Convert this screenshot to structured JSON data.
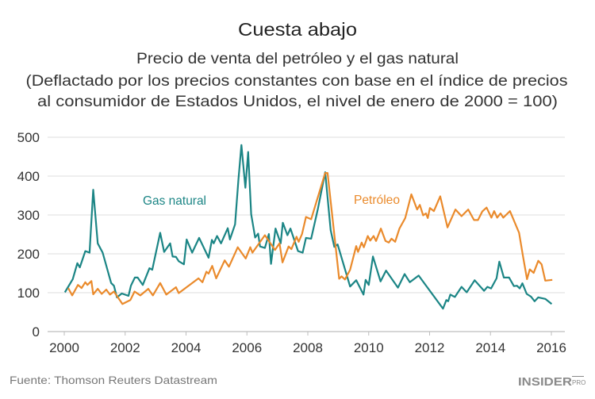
{
  "chart_data": {
    "type": "line",
    "title": "Cuesta abajo",
    "subtitle_lines": [
      "Precio de venta del petróleo y el gas natural",
      "(Deflactado por los precios constantes con base en el índice de precios",
      "al consumidor de Estados Unidos, el nivel de enero de 2000 = 100)"
    ],
    "xlabel": "",
    "ylabel": "",
    "xlim": [
      2000,
      2016
    ],
    "ylim": [
      0,
      500
    ],
    "x_ticks": [
      "2000",
      "2002",
      "2004",
      "2006",
      "2008",
      "2010",
      "2012",
      "2014",
      "2016"
    ],
    "y_ticks": [
      "0",
      "100",
      "200",
      "300",
      "400",
      "500"
    ],
    "grid": "horizontal",
    "series": [
      {
        "name": "Gas natural",
        "color": "#1b8585",
        "x": [
          2000.02,
          2000.28,
          2000.43,
          2000.51,
          2000.69,
          2000.83,
          2000.95,
          2001.1,
          2001.26,
          2001.54,
          2001.63,
          2001.73,
          2001.89,
          2002.11,
          2002.19,
          2002.32,
          2002.41,
          2002.58,
          2002.8,
          2002.89,
          2003.15,
          2003.28,
          2003.48,
          2003.56,
          2003.67,
          2003.76,
          2003.93,
          2004.02,
          2004.2,
          2004.43,
          2004.74,
          2004.85,
          2004.91,
          2005.02,
          2005.15,
          2005.37,
          2005.44,
          2005.61,
          2005.72,
          2005.82,
          2005.95,
          2006.04,
          2006.14,
          2006.27,
          2006.37,
          2006.43,
          2006.59,
          2006.72,
          2006.79,
          2006.94,
          2007.11,
          2007.18,
          2007.33,
          2007.43,
          2007.68,
          2007.83,
          2007.94,
          2008.11,
          2008.33,
          2008.57,
          2008.75,
          2008.87,
          2008.98,
          2009.39,
          2009.59,
          2009.83,
          2009.9,
          2010.0,
          2010.14,
          2010.39,
          2010.57,
          2010.96,
          2011.18,
          2011.35,
          2011.64,
          2012.44,
          2012.55,
          2012.61,
          2012.68,
          2012.83,
          2013.05,
          2013.22,
          2013.48,
          2013.79,
          2013.9,
          2014.02,
          2014.2,
          2014.29,
          2014.44,
          2014.61,
          2014.77,
          2014.87,
          2014.96,
          2015.05,
          2015.19,
          2015.33,
          2015.45,
          2015.57,
          2015.8,
          2016.01
        ],
        "values": [
          101,
          135,
          176,
          165,
          207,
          203,
          365,
          227,
          203,
          125,
          118,
          88,
          98,
          92,
          118,
          139,
          139,
          120,
          163,
          159,
          254,
          205,
          227,
          193,
          192,
          181,
          173,
          237,
          203,
          241,
          190,
          236,
          227,
          246,
          227,
          266,
          237,
          276,
          390,
          480,
          370,
          462,
          302,
          242,
          252,
          219,
          215,
          251,
          174,
          265,
          227,
          280,
          248,
          265,
          207,
          203,
          241,
          239,
          316,
          410,
          261,
          218,
          224,
          116,
          132,
          95,
          133,
          120,
          193,
          129,
          157,
          113,
          148,
          127,
          144,
          59,
          81,
          78,
          95,
          89,
          115,
          101,
          132,
          105,
          115,
          111,
          137,
          180,
          139,
          139,
          117,
          118,
          111,
          124,
          97,
          90,
          78,
          88,
          84,
          71
        ]
      },
      {
        "name": "Petróleo",
        "color": "#ea8a2b",
        "x": [
          2000.13,
          2000.26,
          2000.45,
          2000.57,
          2000.69,
          2000.76,
          2000.89,
          2000.95,
          2001.1,
          2001.23,
          2001.38,
          2001.5,
          2001.63,
          2001.91,
          2002.17,
          2002.31,
          2002.5,
          2002.76,
          2002.91,
          2003.15,
          2003.35,
          2003.67,
          2003.76,
          2004.41,
          2004.54,
          2004.67,
          2004.74,
          2004.86,
          2004.99,
          2005.27,
          2005.41,
          2005.7,
          2005.96,
          2006.11,
          2006.18,
          2006.59,
          2006.92,
          2007.07,
          2007.17,
          2007.37,
          2007.46,
          2007.63,
          2007.7,
          2007.81,
          2007.94,
          2008.11,
          2008.57,
          2008.65,
          2009.03,
          2009.11,
          2009.22,
          2009.39,
          2009.59,
          2009.65,
          2009.77,
          2009.84,
          2009.97,
          2010.05,
          2010.16,
          2010.24,
          2010.4,
          2010.55,
          2010.66,
          2010.75,
          2010.87,
          2011.01,
          2011.2,
          2011.4,
          2011.59,
          2011.68,
          2011.79,
          2011.88,
          2011.94,
          2012.01,
          2012.14,
          2012.35,
          2012.59,
          2012.85,
          2013.05,
          2013.27,
          2013.46,
          2013.59,
          2013.73,
          2013.87,
          2014.03,
          2014.12,
          2014.22,
          2014.33,
          2014.42,
          2014.64,
          2014.94,
          2015.07,
          2015.2,
          2015.29,
          2015.42,
          2015.57,
          2015.68,
          2015.8,
          2016.03
        ],
        "values": [
          112,
          93,
          120,
          112,
          127,
          120,
          130,
          96,
          110,
          97,
          108,
          95,
          103,
          71,
          81,
          103,
          93,
          110,
          93,
          125,
          95,
          114,
          99,
          137,
          127,
          154,
          149,
          169,
          137,
          183,
          167,
          217,
          188,
          217,
          203,
          248,
          210,
          227,
          178,
          219,
          212,
          244,
          231,
          251,
          295,
          289,
          408,
          408,
          136,
          142,
          134,
          159,
          220,
          205,
          229,
          217,
          246,
          234,
          246,
          233,
          265,
          233,
          229,
          239,
          231,
          265,
          292,
          353,
          314,
          326,
          299,
          304,
          292,
          318,
          310,
          348,
          268,
          314,
          297,
          314,
          287,
          287,
          309,
          319,
          293,
          310,
          293,
          304,
          293,
          310,
          254,
          193,
          135,
          160,
          151,
          182,
          173,
          131,
          133
        ]
      }
    ],
    "annotations": [
      "Gas natural",
      "Petróleo"
    ]
  },
  "footer": {
    "source": "Fuente: Thomson Reuters Datastream",
    "logo": "INSIDER PRO"
  }
}
